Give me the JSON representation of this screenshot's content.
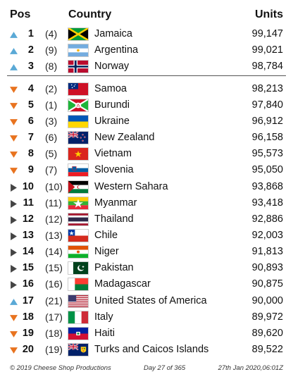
{
  "header": {
    "pos_label": "Pos",
    "country_label": "Country",
    "units_label": "Units"
  },
  "rows": [
    {
      "rank": "1",
      "prev": "(4)",
      "trend": "up",
      "flag": "jamaica",
      "country": "Jamaica",
      "units": "99,147"
    },
    {
      "rank": "2",
      "prev": "(9)",
      "trend": "up",
      "flag": "argentina",
      "country": "Argentina",
      "units": "99,021"
    },
    {
      "rank": "3",
      "prev": "(8)",
      "trend": "up",
      "flag": "norway",
      "country": "Norway",
      "units": "98,784"
    },
    {
      "rank": "4",
      "prev": "(2)",
      "trend": "down",
      "flag": "samoa",
      "country": "Samoa",
      "units": "98,213"
    },
    {
      "rank": "5",
      "prev": "(1)",
      "trend": "down",
      "flag": "burundi",
      "country": "Burundi",
      "units": "97,840"
    },
    {
      "rank": "6",
      "prev": "(3)",
      "trend": "down",
      "flag": "ukraine",
      "country": "Ukraine",
      "units": "96,912"
    },
    {
      "rank": "7",
      "prev": "(6)",
      "trend": "down",
      "flag": "new-zealand",
      "country": "New Zealand",
      "units": "96,158"
    },
    {
      "rank": "8",
      "prev": "(5)",
      "trend": "down",
      "flag": "vietnam",
      "country": "Vietnam",
      "units": "95,573"
    },
    {
      "rank": "9",
      "prev": "(7)",
      "trend": "down",
      "flag": "slovenia",
      "country": "Slovenia",
      "units": "95,050"
    },
    {
      "rank": "10",
      "prev": "(10)",
      "trend": "same",
      "flag": "western-sahara",
      "country": "Western Sahara",
      "units": "93,868"
    },
    {
      "rank": "11",
      "prev": "(11)",
      "trend": "same",
      "flag": "myanmar",
      "country": "Myanmar",
      "units": "93,418"
    },
    {
      "rank": "12",
      "prev": "(12)",
      "trend": "same",
      "flag": "thailand",
      "country": "Thailand",
      "units": "92,886"
    },
    {
      "rank": "13",
      "prev": "(13)",
      "trend": "same",
      "flag": "chile",
      "country": "Chile",
      "units": "92,003"
    },
    {
      "rank": "14",
      "prev": "(14)",
      "trend": "same",
      "flag": "niger",
      "country": "Niger",
      "units": "91,813"
    },
    {
      "rank": "15",
      "prev": "(15)",
      "trend": "same",
      "flag": "pakistan",
      "country": "Pakistan",
      "units": "90,893"
    },
    {
      "rank": "16",
      "prev": "(16)",
      "trend": "same",
      "flag": "madagascar",
      "country": "Madagascar",
      "units": "90,875"
    },
    {
      "rank": "17",
      "prev": "(21)",
      "trend": "up",
      "flag": "usa",
      "country": "United States of America",
      "units": "90,000"
    },
    {
      "rank": "18",
      "prev": "(17)",
      "trend": "down",
      "flag": "italy",
      "country": "Italy",
      "units": "89,972"
    },
    {
      "rank": "19",
      "prev": "(18)",
      "trend": "down",
      "flag": "haiti",
      "country": "Haiti",
      "units": "89,620"
    },
    {
      "rank": "20",
      "prev": "(19)",
      "trend": "down",
      "flag": "turks-caicos",
      "country": "Turks and Caicos Islands",
      "units": "89,522"
    }
  ],
  "trend_colors": {
    "up": "#5aa9d6",
    "down": "#e8731f",
    "same": "#444444"
  },
  "footer": {
    "copyright": "© 2019 Cheese Shop Productions",
    "day": "Day 27 of 365",
    "timestamp": "27th Jan 2020,06:01Z"
  }
}
